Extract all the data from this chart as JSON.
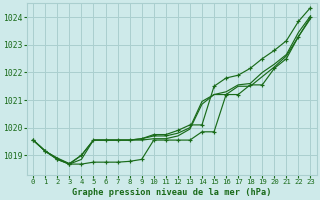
{
  "title": "Graphe pression niveau de la mer (hPa)",
  "background_color": "#ceeaea",
  "grid_color": "#aacfcf",
  "line_color": "#1a6b1a",
  "xlim": [
    -0.5,
    23.5
  ],
  "ylim": [
    1018.3,
    1024.5
  ],
  "xticks": [
    0,
    1,
    2,
    3,
    4,
    5,
    6,
    7,
    8,
    9,
    10,
    11,
    12,
    13,
    14,
    15,
    16,
    17,
    18,
    19,
    20,
    21,
    22,
    23
  ],
  "yticks": [
    1019,
    1020,
    1021,
    1022,
    1023,
    1024
  ],
  "series": [
    {
      "y": [
        1019.55,
        1019.15,
        1018.85,
        1018.68,
        1018.68,
        1018.75,
        1018.75,
        1018.75,
        1018.78,
        1018.85,
        1019.55,
        1019.55,
        1019.55,
        1019.55,
        1019.85,
        1019.85,
        1021.2,
        1021.2,
        1021.55,
        1021.55,
        1022.15,
        1022.5,
        1023.3,
        1024.0
      ],
      "has_markers": true,
      "smooth": false
    },
    {
      "y": [
        1019.55,
        1019.15,
        1018.85,
        1018.68,
        1018.85,
        1019.55,
        1019.55,
        1019.55,
        1019.55,
        1019.55,
        1019.6,
        1019.6,
        1019.7,
        1019.95,
        1020.85,
        1021.2,
        1021.2,
        1021.5,
        1021.5,
        1021.85,
        1022.2,
        1022.6,
        1023.3,
        1023.95
      ],
      "has_markers": false,
      "smooth": false
    },
    {
      "y": [
        1019.55,
        1019.15,
        1018.9,
        1018.7,
        1019.0,
        1019.55,
        1019.55,
        1019.55,
        1019.55,
        1019.6,
        1019.7,
        1019.7,
        1019.8,
        1020.0,
        1020.95,
        1021.2,
        1021.3,
        1021.55,
        1021.6,
        1022.0,
        1022.3,
        1022.65,
        1023.45,
        1024.05
      ],
      "has_markers": false,
      "smooth": false
    },
    {
      "y": [
        1019.55,
        1019.15,
        1018.88,
        1018.68,
        1019.0,
        1019.55,
        1019.55,
        1019.55,
        1019.55,
        1019.6,
        1019.75,
        1019.75,
        1019.9,
        1020.1,
        1020.1,
        1021.5,
        1021.8,
        1021.9,
        1022.15,
        1022.5,
        1022.8,
        1023.15,
        1023.85,
        1024.35
      ],
      "has_markers": true,
      "smooth": false
    }
  ]
}
